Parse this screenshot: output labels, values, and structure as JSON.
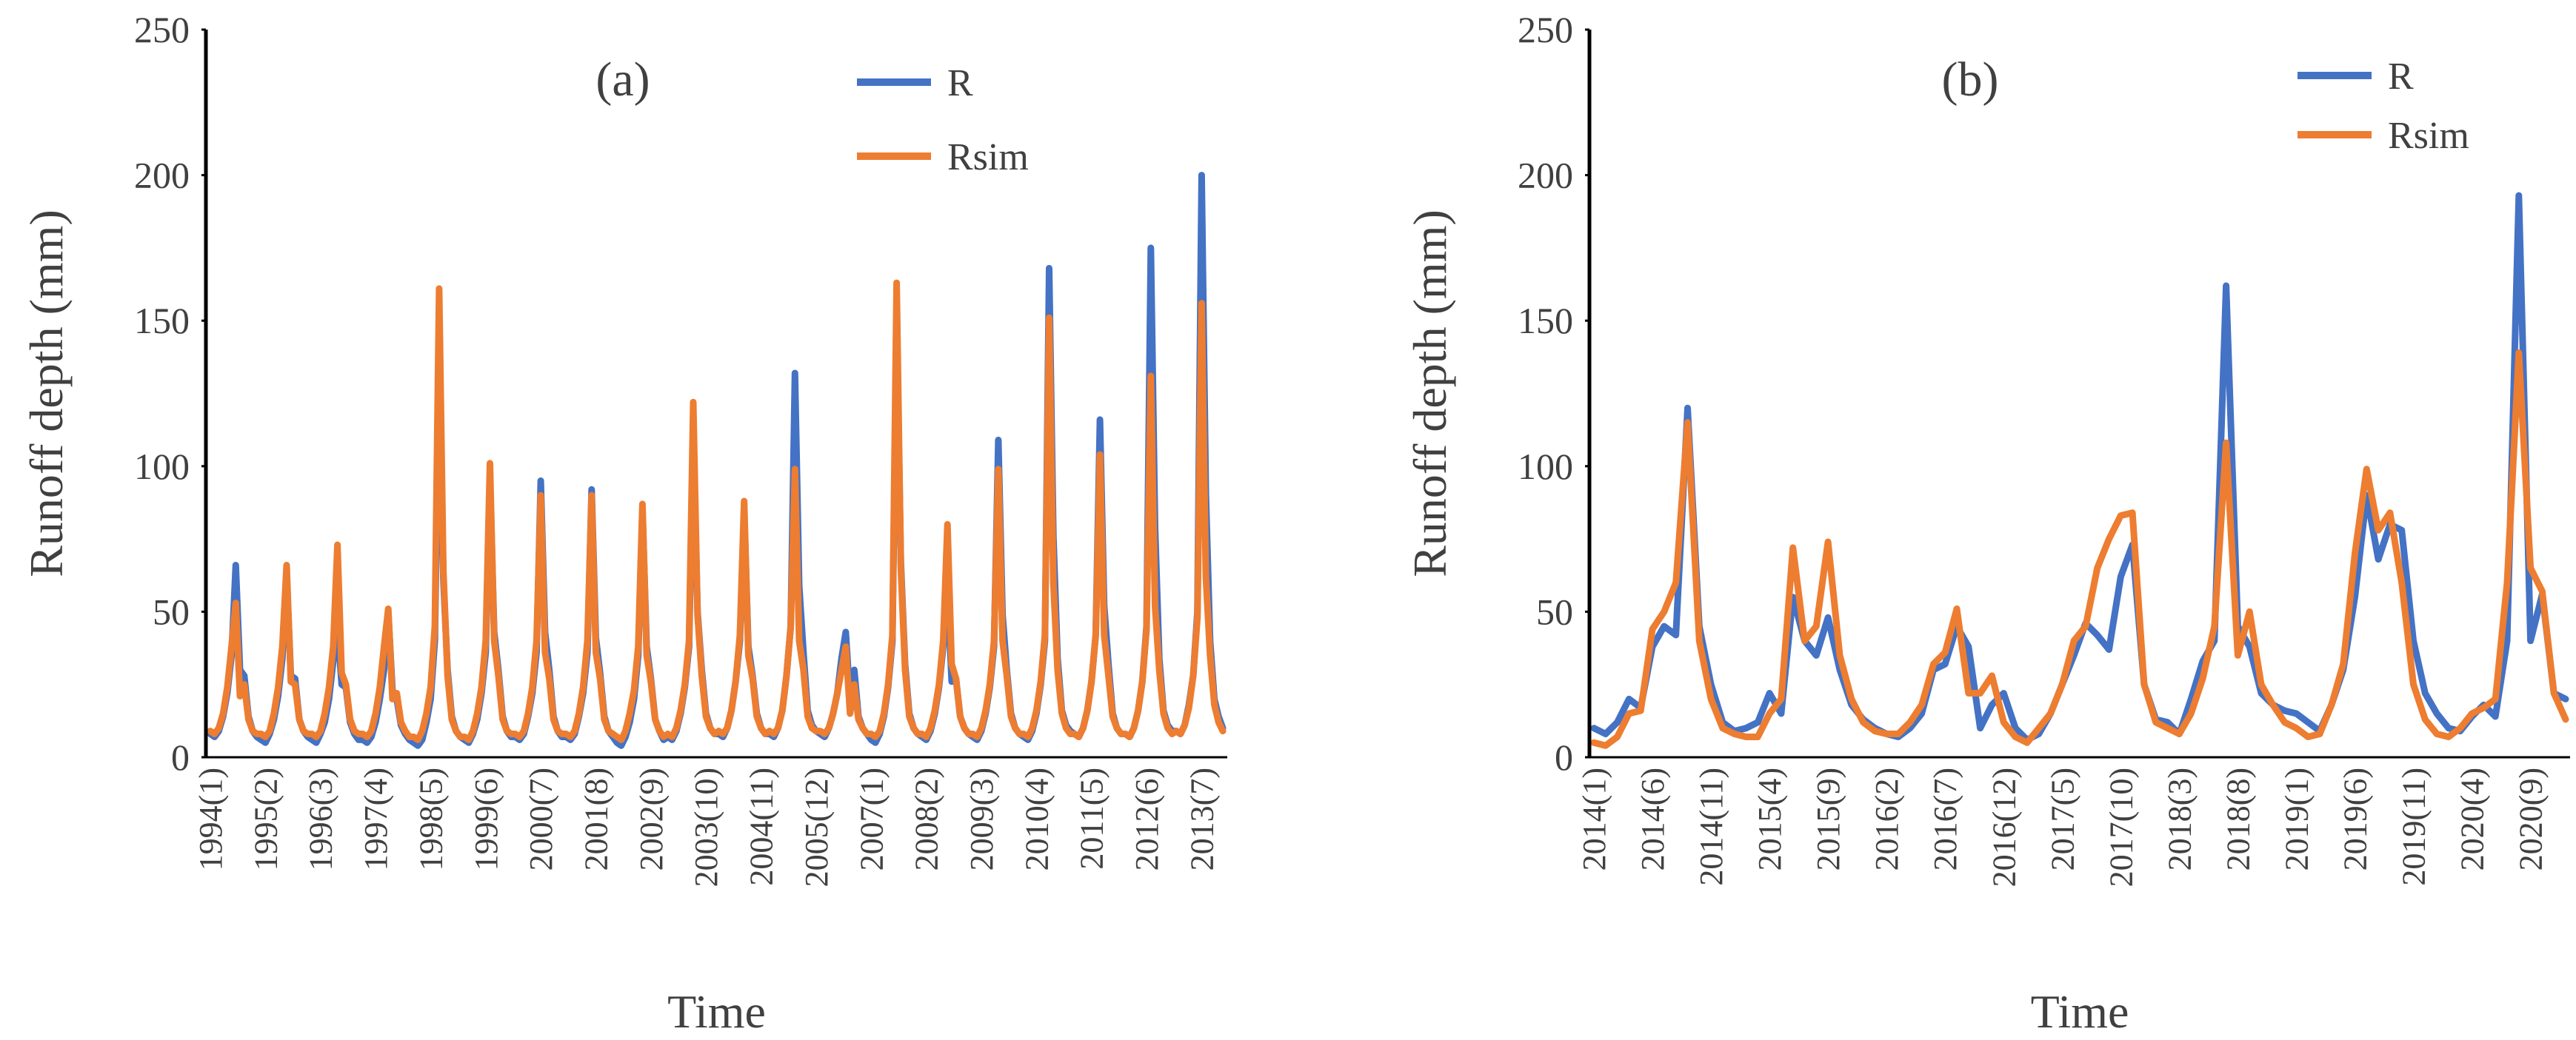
{
  "chart_data": [
    {
      "type": "line",
      "title": "(a)",
      "y_label": "Runoff depth (mm)",
      "x_label": "Time",
      "ylim": [
        0,
        250
      ],
      "yticks": [
        0,
        50,
        100,
        150,
        200,
        250
      ],
      "categories": [
        "1994(1)",
        null,
        null,
        null,
        null,
        null,
        null,
        null,
        null,
        null,
        null,
        null,
        null,
        "1995(2)",
        null,
        null,
        null,
        null,
        null,
        null,
        null,
        null,
        null,
        null,
        null,
        null,
        "1996(3)",
        null,
        null,
        null,
        null,
        null,
        null,
        null,
        null,
        null,
        null,
        null,
        null,
        "1997(4)",
        null,
        null,
        null,
        null,
        null,
        null,
        null,
        null,
        null,
        null,
        null,
        null,
        "1998(5)",
        null,
        null,
        null,
        null,
        null,
        null,
        null,
        null,
        null,
        null,
        null,
        null,
        "1999(6)",
        null,
        null,
        null,
        null,
        null,
        null,
        null,
        null,
        null,
        null,
        null,
        null,
        "2000(7)",
        null,
        null,
        null,
        null,
        null,
        null,
        null,
        null,
        null,
        null,
        null,
        null,
        "2001(8)",
        null,
        null,
        null,
        null,
        null,
        null,
        null,
        null,
        null,
        null,
        null,
        null,
        "2002(9)",
        null,
        null,
        null,
        null,
        null,
        null,
        null,
        null,
        null,
        null,
        null,
        null,
        "2003(10)",
        null,
        null,
        null,
        null,
        null,
        null,
        null,
        null,
        null,
        null,
        null,
        null,
        "2004(11)",
        null,
        null,
        null,
        null,
        null,
        null,
        null,
        null,
        null,
        null,
        null,
        null,
        "2005(12)",
        null,
        null,
        null,
        null,
        null,
        null,
        null,
        null,
        null,
        null,
        null,
        null,
        "2007(1)",
        null,
        null,
        null,
        null,
        null,
        null,
        null,
        null,
        null,
        null,
        null,
        null,
        "2008(2)",
        null,
        null,
        null,
        null,
        null,
        null,
        null,
        null,
        null,
        null,
        null,
        null,
        "2009(3)",
        null,
        null,
        null,
        null,
        null,
        null,
        null,
        null,
        null,
        null,
        null,
        null,
        "2010(4)",
        null,
        null,
        null,
        null,
        null,
        null,
        null,
        null,
        null,
        null,
        null,
        null,
        "2011(5)",
        null,
        null,
        null,
        null,
        null,
        null,
        null,
        null,
        null,
        null,
        null,
        null,
        "2012(6)",
        null,
        null,
        null,
        null,
        null,
        null,
        null,
        null,
        null,
        null,
        null,
        null,
        "2013(7)",
        null,
        null,
        null,
        null,
        null
      ],
      "series": [
        {
          "name": "R",
          "color": "#4472c4",
          "values": [
            8,
            7,
            9,
            14,
            22,
            35,
            66,
            30,
            28,
            14,
            9,
            7,
            6,
            5,
            8,
            13,
            21,
            34,
            63,
            28,
            27,
            13,
            9,
            7,
            6,
            5,
            8,
            12,
            20,
            33,
            45,
            25,
            24,
            12,
            8,
            6,
            6,
            5,
            7,
            12,
            20,
            30,
            50,
            23,
            20,
            11,
            8,
            6,
            5,
            4,
            6,
            12,
            20,
            40,
            135,
            61,
            30,
            14,
            9,
            7,
            6,
            5,
            8,
            13,
            22,
            36,
            96,
            43,
            30,
            14,
            9,
            7,
            7,
            6,
            8,
            14,
            22,
            36,
            95,
            43,
            30,
            14,
            9,
            7,
            7,
            6,
            8,
            14,
            22,
            36,
            92,
            41,
            29,
            14,
            9,
            7,
            5,
            4,
            7,
            12,
            20,
            35,
            85,
            38,
            27,
            13,
            9,
            6,
            7,
            6,
            9,
            15,
            24,
            38,
            110,
            50,
            30,
            15,
            10,
            8,
            8,
            7,
            10,
            16,
            26,
            40,
            85,
            38,
            28,
            15,
            10,
            8,
            8,
            7,
            10,
            16,
            28,
            45,
            132,
            59,
            36,
            16,
            11,
            9,
            8,
            7,
            10,
            15,
            22,
            34,
            43,
            20,
            30,
            14,
            10,
            8,
            6,
            5,
            8,
            14,
            24,
            40,
            150,
            67,
            32,
            15,
            10,
            8,
            7,
            6,
            9,
            15,
            24,
            38,
            58,
            26,
            27,
            14,
            10,
            8,
            7,
            6,
            9,
            15,
            24,
            38,
            109,
            49,
            30,
            15,
            10,
            8,
            7,
            6,
            9,
            15,
            25,
            40,
            168,
            76,
            34,
            16,
            11,
            9,
            8,
            7,
            10,
            16,
            26,
            42,
            116,
            52,
            32,
            15,
            10,
            8,
            8,
            7,
            10,
            16,
            26,
            45,
            175,
            79,
            34,
            16,
            11,
            9,
            9,
            8,
            11,
            18,
            28,
            50,
            200,
            90,
            40,
            20,
            14,
            10
          ]
        },
        {
          "name": "Rsim",
          "color": "#ed7d31",
          "values": [
            9,
            8,
            10,
            15,
            24,
            38,
            53,
            21,
            25,
            13,
            9,
            8,
            8,
            7,
            9,
            15,
            24,
            38,
            66,
            26,
            25,
            13,
            9,
            8,
            8,
            7,
            9,
            15,
            24,
            38,
            73,
            29,
            25,
            13,
            9,
            8,
            8,
            7,
            9,
            15,
            24,
            38,
            51,
            20,
            22,
            12,
            9,
            7,
            7,
            6,
            9,
            15,
            24,
            45,
            161,
            64,
            28,
            13,
            9,
            7,
            7,
            6,
            9,
            15,
            24,
            40,
            101,
            40,
            28,
            13,
            9,
            8,
            8,
            7,
            9,
            15,
            24,
            40,
            90,
            36,
            27,
            13,
            9,
            8,
            8,
            7,
            9,
            15,
            24,
            40,
            90,
            36,
            27,
            13,
            9,
            8,
            7,
            6,
            9,
            15,
            23,
            38,
            87,
            35,
            26,
            13,
            9,
            7,
            8,
            7,
            10,
            16,
            25,
            40,
            122,
            49,
            28,
            14,
            10,
            8,
            9,
            8,
            10,
            16,
            26,
            42,
            88,
            35,
            27,
            14,
            10,
            8,
            9,
            8,
            10,
            16,
            28,
            45,
            99,
            40,
            30,
            14,
            10,
            9,
            9,
            8,
            10,
            15,
            22,
            30,
            38,
            15,
            25,
            13,
            10,
            8,
            8,
            7,
            9,
            15,
            25,
            42,
            163,
            65,
            30,
            14,
            10,
            8,
            8,
            7,
            10,
            16,
            25,
            40,
            80,
            32,
            27,
            14,
            10,
            8,
            8,
            7,
            10,
            16,
            25,
            40,
            99,
            40,
            28,
            14,
            10,
            8,
            8,
            7,
            10,
            16,
            26,
            42,
            151,
            60,
            30,
            15,
            10,
            8,
            8,
            7,
            10,
            16,
            26,
            42,
            104,
            42,
            28,
            14,
            10,
            8,
            8,
            7,
            10,
            16,
            26,
            44,
            131,
            52,
            30,
            15,
            10,
            8,
            9,
            8,
            11,
            17,
            28,
            48,
            156,
            62,
            35,
            18,
            12,
            9
          ]
        }
      ]
    },
    {
      "type": "line",
      "title": "(b)",
      "y_label": "Runoff depth (mm)",
      "x_label": "Time",
      "ylim": [
        0,
        250
      ],
      "yticks": [
        0,
        50,
        100,
        150,
        200,
        250
      ],
      "categories": [
        "2014(1)",
        null,
        null,
        null,
        null,
        "2014(6)",
        null,
        null,
        null,
        null,
        "2014(11)",
        null,
        null,
        null,
        null,
        "2015(4)",
        null,
        null,
        null,
        null,
        "2015(9)",
        null,
        null,
        null,
        null,
        "2016(2)",
        null,
        null,
        null,
        null,
        "2016(7)",
        null,
        null,
        null,
        null,
        "2016(12)",
        null,
        null,
        null,
        null,
        "2017(5)",
        null,
        null,
        null,
        null,
        "2017(10)",
        null,
        null,
        null,
        null,
        "2018(3)",
        null,
        null,
        null,
        null,
        "2018(8)",
        null,
        null,
        null,
        null,
        "2019(1)",
        null,
        null,
        null,
        null,
        "2019(6)",
        null,
        null,
        null,
        null,
        "2019(11)",
        null,
        null,
        null,
        null,
        "2020(4)",
        null,
        null,
        null,
        null,
        "2020(9)",
        null,
        null,
        null
      ],
      "series": [
        {
          "name": "R",
          "color": "#4472c4",
          "values": [
            10,
            8,
            12,
            20,
            17,
            38,
            45,
            42,
            120,
            45,
            25,
            12,
            9,
            10,
            12,
            22,
            15,
            55,
            40,
            35,
            48,
            30,
            18,
            13,
            10,
            8,
            7,
            10,
            15,
            30,
            32,
            45,
            38,
            10,
            18,
            22,
            10,
            6,
            8,
            15,
            25,
            35,
            46,
            42,
            37,
            62,
            73,
            25,
            13,
            12,
            8,
            20,
            33,
            40,
            162,
            45,
            38,
            22,
            18,
            16,
            15,
            12,
            9,
            18,
            30,
            55,
            90,
            68,
            80,
            78,
            40,
            22,
            15,
            10,
            9,
            14,
            18,
            14,
            40,
            193,
            40,
            56,
            22,
            20
          ]
        },
        {
          "name": "Rsim",
          "color": "#ed7d31",
          "values": [
            5,
            4,
            7,
            15,
            16,
            44,
            50,
            60,
            115,
            40,
            20,
            10,
            8,
            7,
            7,
            15,
            20,
            72,
            40,
            45,
            74,
            35,
            20,
            12,
            9,
            8,
            8,
            12,
            18,
            32,
            36,
            51,
            22,
            22,
            28,
            12,
            7,
            5,
            10,
            15,
            25,
            40,
            45,
            65,
            75,
            83,
            84,
            25,
            12,
            10,
            8,
            15,
            27,
            45,
            108,
            35,
            50,
            25,
            18,
            12,
            10,
            7,
            8,
            18,
            32,
            70,
            99,
            78,
            84,
            60,
            25,
            13,
            8,
            7,
            10,
            15,
            17,
            20,
            60,
            139,
            65,
            57,
            22,
            13
          ]
        }
      ]
    }
  ]
}
